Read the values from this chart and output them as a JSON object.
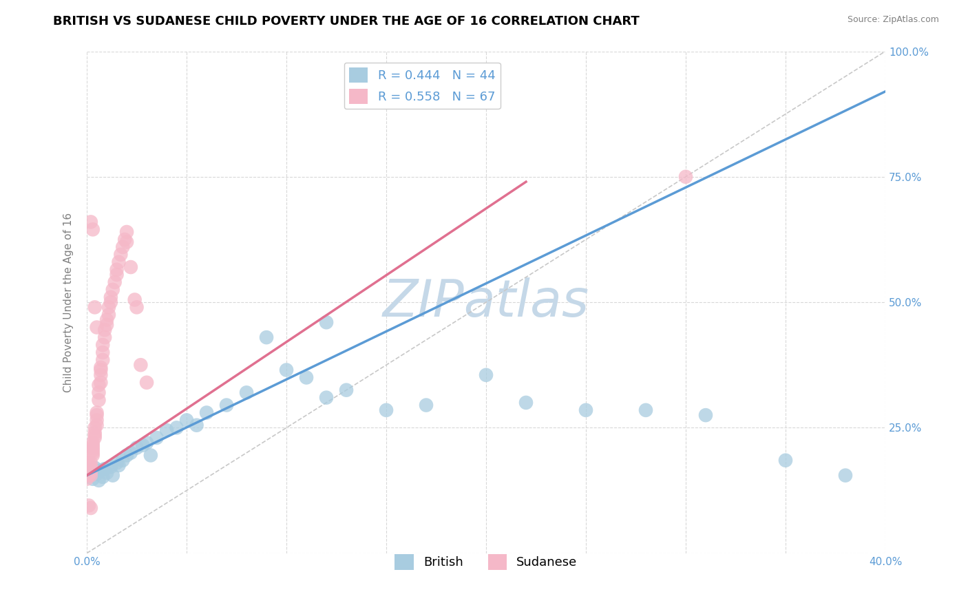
{
  "title": "BRITISH VS SUDANESE CHILD POVERTY UNDER THE AGE OF 16 CORRELATION CHART",
  "source": "Source: ZipAtlas.com",
  "ylabel": "Child Poverty Under the Age of 16",
  "xlim": [
    0.0,
    0.4
  ],
  "ylim": [
    0.0,
    1.0
  ],
  "xticks": [
    0.0,
    0.05,
    0.1,
    0.15,
    0.2,
    0.25,
    0.3,
    0.35,
    0.4
  ],
  "yticks": [
    0.0,
    0.25,
    0.5,
    0.75,
    1.0
  ],
  "british_R": 0.444,
  "british_N": 44,
  "sudanese_R": 0.558,
  "sudanese_N": 67,
  "british_color": "#a8cce0",
  "sudanese_color": "#f5b8c8",
  "british_line_color": "#5b9bd5",
  "sudanese_line_color": "#e07090",
  "ref_line_color": "#c8c8c8",
  "watermark": "ZIPatlas",
  "watermark_color": "#c5d8e8",
  "background_color": "#ffffff",
  "grid_color": "#d8d8d8",
  "title_fontsize": 13,
  "axis_label_fontsize": 11,
  "tick_fontsize": 11,
  "legend_fontsize": 13,
  "british_x": [
    0.001,
    0.002,
    0.003,
    0.004,
    0.005,
    0.006,
    0.007,
    0.008,
    0.009,
    0.01,
    0.012,
    0.013,
    0.015,
    0.016,
    0.018,
    0.02,
    0.022,
    0.025,
    0.028,
    0.03,
    0.032,
    0.035,
    0.04,
    0.045,
    0.05,
    0.055,
    0.06,
    0.07,
    0.08,
    0.09,
    0.1,
    0.11,
    0.12,
    0.13,
    0.15,
    0.17,
    0.2,
    0.22,
    0.25,
    0.28,
    0.12,
    0.31,
    0.35,
    0.38
  ],
  "british_y": [
    0.155,
    0.162,
    0.148,
    0.17,
    0.158,
    0.145,
    0.165,
    0.152,
    0.168,
    0.16,
    0.172,
    0.155,
    0.18,
    0.175,
    0.185,
    0.195,
    0.2,
    0.21,
    0.215,
    0.22,
    0.195,
    0.23,
    0.245,
    0.25,
    0.265,
    0.255,
    0.28,
    0.295,
    0.32,
    0.43,
    0.365,
    0.35,
    0.31,
    0.325,
    0.285,
    0.295,
    0.355,
    0.3,
    0.285,
    0.285,
    0.46,
    0.275,
    0.185,
    0.155
  ],
  "sudanese_x": [
    0.0,
    0.0,
    0.0,
    0.001,
    0.001,
    0.001,
    0.001,
    0.001,
    0.002,
    0.002,
    0.002,
    0.002,
    0.002,
    0.003,
    0.003,
    0.003,
    0.003,
    0.003,
    0.003,
    0.004,
    0.004,
    0.004,
    0.004,
    0.005,
    0.005,
    0.005,
    0.005,
    0.006,
    0.006,
    0.006,
    0.007,
    0.007,
    0.007,
    0.007,
    0.008,
    0.008,
    0.008,
    0.009,
    0.009,
    0.01,
    0.01,
    0.011,
    0.011,
    0.012,
    0.012,
    0.013,
    0.014,
    0.015,
    0.015,
    0.016,
    0.017,
    0.018,
    0.019,
    0.02,
    0.02,
    0.022,
    0.024,
    0.025,
    0.027,
    0.03,
    0.002,
    0.003,
    0.004,
    0.005,
    0.001,
    0.002,
    0.3
  ],
  "sudanese_y": [
    0.155,
    0.162,
    0.148,
    0.168,
    0.175,
    0.155,
    0.165,
    0.18,
    0.162,
    0.17,
    0.155,
    0.18,
    0.172,
    0.195,
    0.205,
    0.215,
    0.2,
    0.21,
    0.22,
    0.23,
    0.24,
    0.25,
    0.235,
    0.255,
    0.265,
    0.28,
    0.275,
    0.305,
    0.32,
    0.335,
    0.34,
    0.355,
    0.365,
    0.37,
    0.385,
    0.4,
    0.415,
    0.43,
    0.445,
    0.455,
    0.465,
    0.475,
    0.49,
    0.5,
    0.51,
    0.525,
    0.54,
    0.555,
    0.565,
    0.58,
    0.595,
    0.61,
    0.625,
    0.64,
    0.62,
    0.57,
    0.505,
    0.49,
    0.375,
    0.34,
    0.66,
    0.645,
    0.49,
    0.45,
    0.095,
    0.09,
    0.75
  ],
  "british_line_x0": 0.0,
  "british_line_y0": 0.155,
  "british_line_x1": 0.4,
  "british_line_y1": 0.92,
  "sudanese_line_x0": 0.0,
  "sudanese_line_y0": 0.155,
  "sudanese_line_x1": 0.22,
  "sudanese_line_y1": 0.74
}
